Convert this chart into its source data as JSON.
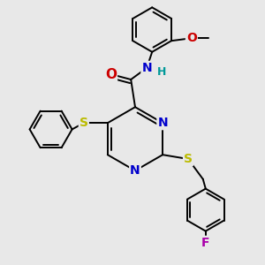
{
  "background_color": "#e8e8e8",
  "bond_color": "#000000",
  "bond_width": 1.4,
  "atom_colors": {
    "N": "#0000cc",
    "O": "#cc0000",
    "S": "#bbbb00",
    "F": "#aa00aa",
    "H": "#009999",
    "C": "#000000"
  },
  "font_size": 10
}
